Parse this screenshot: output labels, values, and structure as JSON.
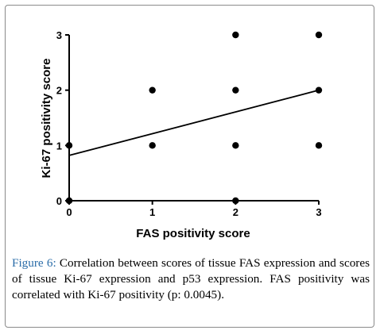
{
  "chart_data": {
    "type": "scatter",
    "xlabel": "FAS positivity score",
    "ylabel": "Ki-67 positivity score",
    "xticks": [
      0,
      1,
      2,
      3
    ],
    "yticks": [
      0,
      1,
      2,
      3
    ],
    "xlim": [
      0,
      3
    ],
    "ylim": [
      0,
      3
    ],
    "points": [
      {
        "x": 0,
        "y": 1
      },
      {
        "x": 0,
        "y": 0
      },
      {
        "x": 1,
        "y": 2
      },
      {
        "x": 1,
        "y": 1
      },
      {
        "x": 2,
        "y": 3
      },
      {
        "x": 2,
        "y": 2
      },
      {
        "x": 2,
        "y": 1
      },
      {
        "x": 2,
        "y": 0
      },
      {
        "x": 3,
        "y": 3
      },
      {
        "x": 3,
        "y": 2
      },
      {
        "x": 3,
        "y": 1
      }
    ],
    "regression_line": {
      "x": [
        0,
        3
      ],
      "y": [
        0.82,
        2.0
      ]
    },
    "grid": false,
    "colors": {
      "marker": "#000000",
      "line": "#000000"
    }
  },
  "caption": {
    "label": "Figure 6:",
    "text": "Correlation between scores of tissue FAS expression and scores of tissue Ki-67 expression and p53 expression. FAS positivity was correlated with Ki-67 positivity (p: 0.0045)."
  }
}
